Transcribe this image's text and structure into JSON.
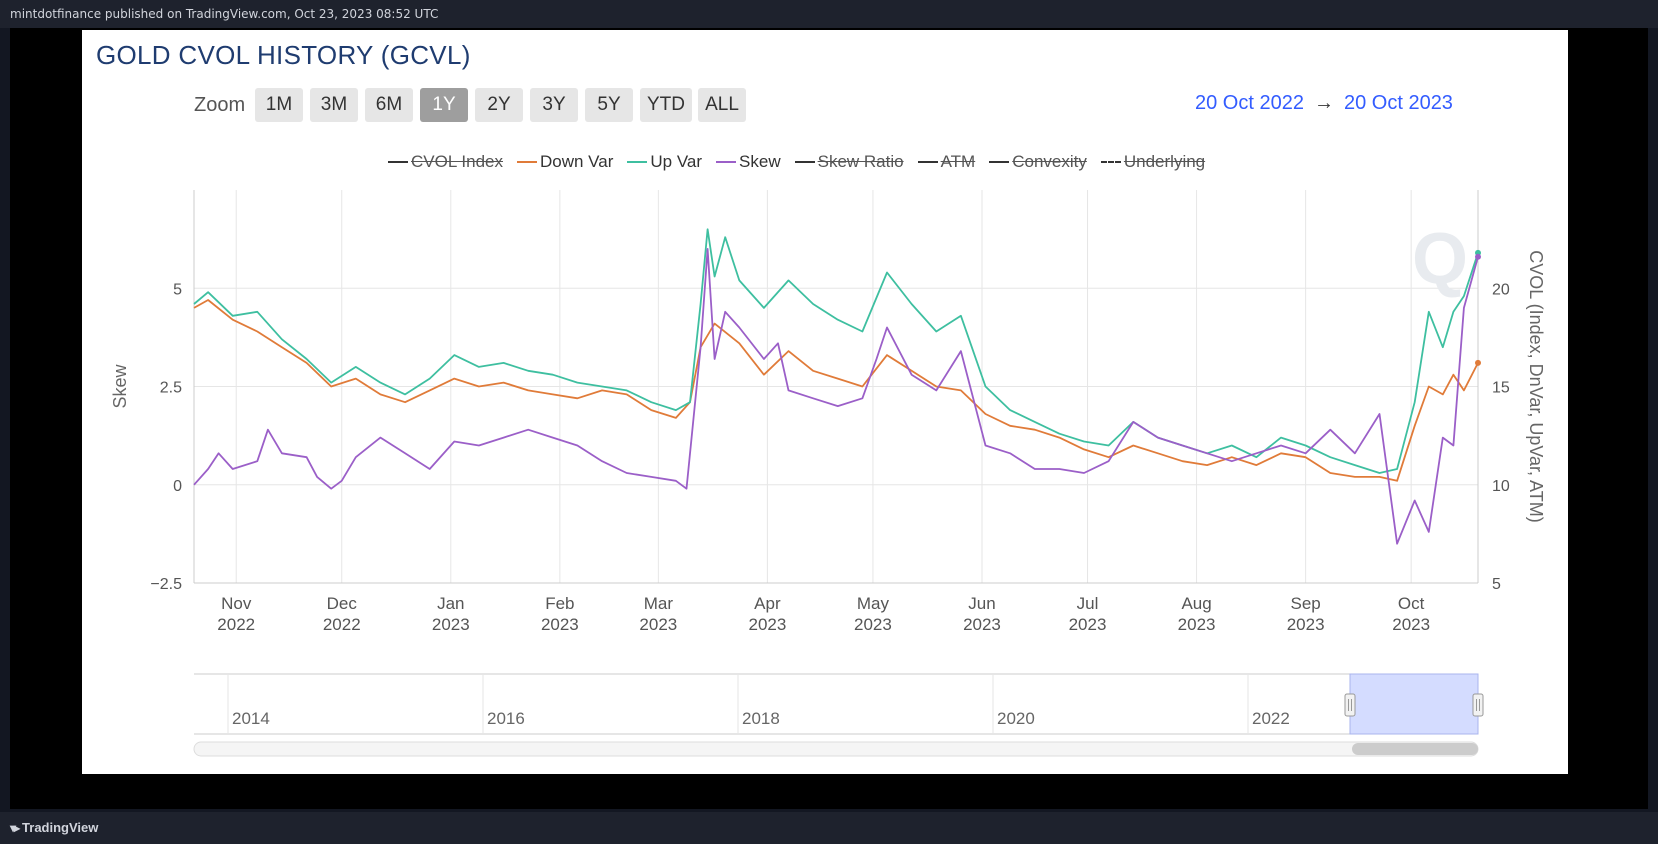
{
  "header": {
    "published": "mintdotfinance published on TradingView.com, Oct 23, 2023 08:52 UTC"
  },
  "footer": {
    "brand": "TradingView",
    "brand_icon": "tradingview-logo-icon"
  },
  "chart": {
    "title": "GOLD CVOL HISTORY (GCVL)",
    "zoom_label": "Zoom",
    "zoom_buttons": [
      "1M",
      "3M",
      "6M",
      "1Y",
      "2Y",
      "3Y",
      "5Y",
      "YTD",
      "ALL"
    ],
    "zoom_active": "1Y",
    "range_from": "20 Oct 2022",
    "range_arrow": "→",
    "range_to": "20 Oct 2023",
    "legend": [
      {
        "name": "CVOL Index",
        "color": "#333333",
        "visible": false,
        "dashed": false
      },
      {
        "name": "Down Var",
        "color": "#e07b39",
        "visible": true,
        "dashed": false
      },
      {
        "name": "Up Var",
        "color": "#3ebfa0",
        "visible": true,
        "dashed": false
      },
      {
        "name": "Skew",
        "color": "#9b5fc8",
        "visible": true,
        "dashed": false
      },
      {
        "name": "Skew Ratio",
        "color": "#333333",
        "visible": false,
        "dashed": false
      },
      {
        "name": "ATM",
        "color": "#333333",
        "visible": false,
        "dashed": false
      },
      {
        "name": "Convexity",
        "color": "#333333",
        "visible": false,
        "dashed": false
      },
      {
        "name": "Underlying",
        "color": "#333333",
        "visible": false,
        "dashed": true
      }
    ],
    "navigator_labels": [
      "2014",
      "2016",
      "2018",
      "2020",
      "2022"
    ],
    "watermark_icon": "q-watermark-icon"
  },
  "chart_data": {
    "type": "line",
    "x_axis": {
      "range": [
        "2022-10-20",
        "2023-10-20"
      ],
      "ticks": [
        {
          "date": "2022-11-01",
          "month": "Nov",
          "year": "2022"
        },
        {
          "date": "2022-12-01",
          "month": "Dec",
          "year": "2022"
        },
        {
          "date": "2023-01-01",
          "month": "Jan",
          "year": "2023"
        },
        {
          "date": "2023-02-01",
          "month": "Feb",
          "year": "2023"
        },
        {
          "date": "2023-03-01",
          "month": "Mar",
          "year": "2023"
        },
        {
          "date": "2023-04-01",
          "month": "Apr",
          "year": "2023"
        },
        {
          "date": "2023-05-01",
          "month": "May",
          "year": "2023"
        },
        {
          "date": "2023-06-01",
          "month": "Jun",
          "year": "2023"
        },
        {
          "date": "2023-07-01",
          "month": "Jul",
          "year": "2023"
        },
        {
          "date": "2023-08-01",
          "month": "Aug",
          "year": "2023"
        },
        {
          "date": "2023-09-01",
          "month": "Sep",
          "year": "2023"
        },
        {
          "date": "2023-10-01",
          "month": "Oct",
          "year": "2023"
        }
      ]
    },
    "y_left": {
      "label": "Skew",
      "range": [
        -2.5,
        7.5
      ],
      "ticks": [
        -2.5,
        0,
        2.5,
        5
      ],
      "tick_labels": [
        "−2.5",
        "0",
        "2.5",
        "5"
      ]
    },
    "y_right": {
      "label": "CVOL (Index, DnVar, UpVar, ATM)",
      "range": [
        5,
        25
      ],
      "ticks": [
        5,
        10,
        15,
        20
      ]
    },
    "grid": true,
    "series": [
      {
        "name": "Down Var",
        "axis": "right",
        "color": "#e07b39",
        "points": [
          [
            "2022-10-20",
            19.0
          ],
          [
            "2022-10-24",
            19.4
          ],
          [
            "2022-10-31",
            18.4
          ],
          [
            "2022-11-07",
            17.8
          ],
          [
            "2022-11-14",
            17.0
          ],
          [
            "2022-11-21",
            16.2
          ],
          [
            "2022-11-28",
            15.0
          ],
          [
            "2022-12-05",
            15.4
          ],
          [
            "2022-12-12",
            14.6
          ],
          [
            "2022-12-19",
            14.2
          ],
          [
            "2022-12-26",
            14.8
          ],
          [
            "2023-01-02",
            15.4
          ],
          [
            "2023-01-09",
            15.0
          ],
          [
            "2023-01-16",
            15.2
          ],
          [
            "2023-01-23",
            14.8
          ],
          [
            "2023-01-30",
            14.6
          ],
          [
            "2023-02-06",
            14.4
          ],
          [
            "2023-02-13",
            14.8
          ],
          [
            "2023-02-20",
            14.6
          ],
          [
            "2023-02-27",
            13.8
          ],
          [
            "2023-03-06",
            13.4
          ],
          [
            "2023-03-10",
            14.2
          ],
          [
            "2023-03-13",
            17.0
          ],
          [
            "2023-03-17",
            18.2
          ],
          [
            "2023-03-24",
            17.2
          ],
          [
            "2023-03-31",
            15.6
          ],
          [
            "2023-04-07",
            16.8
          ],
          [
            "2023-04-14",
            15.8
          ],
          [
            "2023-04-21",
            15.4
          ],
          [
            "2023-04-28",
            15.0
          ],
          [
            "2023-05-05",
            16.6
          ],
          [
            "2023-05-12",
            15.8
          ],
          [
            "2023-05-19",
            15.0
          ],
          [
            "2023-05-26",
            14.8
          ],
          [
            "2023-06-02",
            13.6
          ],
          [
            "2023-06-09",
            13.0
          ],
          [
            "2023-06-16",
            12.8
          ],
          [
            "2023-06-23",
            12.4
          ],
          [
            "2023-06-30",
            11.8
          ],
          [
            "2023-07-07",
            11.4
          ],
          [
            "2023-07-14",
            12.0
          ],
          [
            "2023-07-21",
            11.6
          ],
          [
            "2023-07-28",
            11.2
          ],
          [
            "2023-08-04",
            11.0
          ],
          [
            "2023-08-11",
            11.4
          ],
          [
            "2023-08-18",
            11.0
          ],
          [
            "2023-08-25",
            11.6
          ],
          [
            "2023-09-01",
            11.4
          ],
          [
            "2023-09-08",
            10.6
          ],
          [
            "2023-09-15",
            10.4
          ],
          [
            "2023-09-22",
            10.4
          ],
          [
            "2023-09-27",
            10.2
          ],
          [
            "2023-10-02",
            13.0
          ],
          [
            "2023-10-06",
            15.0
          ],
          [
            "2023-10-10",
            14.6
          ],
          [
            "2023-10-13",
            15.6
          ],
          [
            "2023-10-16",
            14.8
          ],
          [
            "2023-10-20",
            16.2
          ]
        ]
      },
      {
        "name": "Up Var",
        "axis": "right",
        "color": "#3ebfa0",
        "points": [
          [
            "2022-10-20",
            19.2
          ],
          [
            "2022-10-24",
            19.8
          ],
          [
            "2022-10-31",
            18.6
          ],
          [
            "2022-11-07",
            18.8
          ],
          [
            "2022-11-14",
            17.4
          ],
          [
            "2022-11-21",
            16.4
          ],
          [
            "2022-11-28",
            15.2
          ],
          [
            "2022-12-05",
            16.0
          ],
          [
            "2022-12-12",
            15.2
          ],
          [
            "2022-12-19",
            14.6
          ],
          [
            "2022-12-26",
            15.4
          ],
          [
            "2023-01-02",
            16.6
          ],
          [
            "2023-01-09",
            16.0
          ],
          [
            "2023-01-16",
            16.2
          ],
          [
            "2023-01-23",
            15.8
          ],
          [
            "2023-01-30",
            15.6
          ],
          [
            "2023-02-06",
            15.2
          ],
          [
            "2023-02-13",
            15.0
          ],
          [
            "2023-02-20",
            14.8
          ],
          [
            "2023-02-27",
            14.2
          ],
          [
            "2023-03-06",
            13.8
          ],
          [
            "2023-03-10",
            14.2
          ],
          [
            "2023-03-13",
            19.2
          ],
          [
            "2023-03-15",
            23.0
          ],
          [
            "2023-03-17",
            20.6
          ],
          [
            "2023-03-20",
            22.6
          ],
          [
            "2023-03-24",
            20.4
          ],
          [
            "2023-03-31",
            19.0
          ],
          [
            "2023-04-07",
            20.4
          ],
          [
            "2023-04-14",
            19.2
          ],
          [
            "2023-04-21",
            18.4
          ],
          [
            "2023-04-28",
            17.8
          ],
          [
            "2023-05-05",
            20.8
          ],
          [
            "2023-05-12",
            19.2
          ],
          [
            "2023-05-19",
            17.8
          ],
          [
            "2023-05-26",
            18.6
          ],
          [
            "2023-06-02",
            15.0
          ],
          [
            "2023-06-09",
            13.8
          ],
          [
            "2023-06-16",
            13.2
          ],
          [
            "2023-06-23",
            12.6
          ],
          [
            "2023-06-30",
            12.2
          ],
          [
            "2023-07-07",
            12.0
          ],
          [
            "2023-07-14",
            13.2
          ],
          [
            "2023-07-21",
            12.4
          ],
          [
            "2023-07-28",
            12.0
          ],
          [
            "2023-08-04",
            11.6
          ],
          [
            "2023-08-11",
            12.0
          ],
          [
            "2023-08-18",
            11.4
          ],
          [
            "2023-08-25",
            12.4
          ],
          [
            "2023-09-01",
            12.0
          ],
          [
            "2023-09-08",
            11.4
          ],
          [
            "2023-09-15",
            11.0
          ],
          [
            "2023-09-22",
            10.6
          ],
          [
            "2023-09-27",
            10.8
          ],
          [
            "2023-10-02",
            14.2
          ],
          [
            "2023-10-06",
            18.8
          ],
          [
            "2023-10-10",
            17.0
          ],
          [
            "2023-10-13",
            18.8
          ],
          [
            "2023-10-16",
            19.6
          ],
          [
            "2023-10-20",
            21.8
          ]
        ]
      },
      {
        "name": "Skew",
        "axis": "left",
        "color": "#9b5fc8",
        "points": [
          [
            "2022-10-20",
            0.0
          ],
          [
            "2022-10-24",
            0.4
          ],
          [
            "2022-10-27",
            0.8
          ],
          [
            "2022-10-31",
            0.4
          ],
          [
            "2022-11-07",
            0.6
          ],
          [
            "2022-11-10",
            1.4
          ],
          [
            "2022-11-14",
            0.8
          ],
          [
            "2022-11-21",
            0.7
          ],
          [
            "2022-11-24",
            0.2
          ],
          [
            "2022-11-28",
            -0.1
          ],
          [
            "2022-12-01",
            0.1
          ],
          [
            "2022-12-05",
            0.7
          ],
          [
            "2022-12-12",
            1.2
          ],
          [
            "2022-12-19",
            0.8
          ],
          [
            "2022-12-26",
            0.4
          ],
          [
            "2023-01-02",
            1.1
          ],
          [
            "2023-01-09",
            1.0
          ],
          [
            "2023-01-16",
            1.2
          ],
          [
            "2023-01-23",
            1.4
          ],
          [
            "2023-01-30",
            1.2
          ],
          [
            "2023-02-06",
            1.0
          ],
          [
            "2023-02-13",
            0.6
          ],
          [
            "2023-02-20",
            0.3
          ],
          [
            "2023-02-27",
            0.2
          ],
          [
            "2023-03-06",
            0.1
          ],
          [
            "2023-03-09",
            -0.1
          ],
          [
            "2023-03-13",
            3.5
          ],
          [
            "2023-03-15",
            6.0
          ],
          [
            "2023-03-17",
            3.2
          ],
          [
            "2023-03-20",
            4.4
          ],
          [
            "2023-03-24",
            4.0
          ],
          [
            "2023-03-31",
            3.2
          ],
          [
            "2023-04-04",
            3.6
          ],
          [
            "2023-04-07",
            2.4
          ],
          [
            "2023-04-14",
            2.2
          ],
          [
            "2023-04-21",
            2.0
          ],
          [
            "2023-04-28",
            2.2
          ],
          [
            "2023-05-02",
            3.2
          ],
          [
            "2023-05-05",
            4.0
          ],
          [
            "2023-05-12",
            2.8
          ],
          [
            "2023-05-19",
            2.4
          ],
          [
            "2023-05-26",
            3.4
          ],
          [
            "2023-06-02",
            1.0
          ],
          [
            "2023-06-09",
            0.8
          ],
          [
            "2023-06-16",
            0.4
          ],
          [
            "2023-06-23",
            0.4
          ],
          [
            "2023-06-30",
            0.3
          ],
          [
            "2023-07-07",
            0.6
          ],
          [
            "2023-07-14",
            1.6
          ],
          [
            "2023-07-21",
            1.2
          ],
          [
            "2023-07-28",
            1.0
          ],
          [
            "2023-08-04",
            0.8
          ],
          [
            "2023-08-11",
            0.6
          ],
          [
            "2023-08-18",
            0.8
          ],
          [
            "2023-08-25",
            1.0
          ],
          [
            "2023-09-01",
            0.8
          ],
          [
            "2023-09-08",
            1.4
          ],
          [
            "2023-09-15",
            0.8
          ],
          [
            "2023-09-22",
            1.8
          ],
          [
            "2023-09-27",
            -1.5
          ],
          [
            "2023-10-02",
            -0.4
          ],
          [
            "2023-10-06",
            -1.2
          ],
          [
            "2023-10-10",
            1.2
          ],
          [
            "2023-10-13",
            1.0
          ],
          [
            "2023-10-16",
            4.5
          ],
          [
            "2023-10-20",
            5.8
          ]
        ]
      }
    ]
  }
}
